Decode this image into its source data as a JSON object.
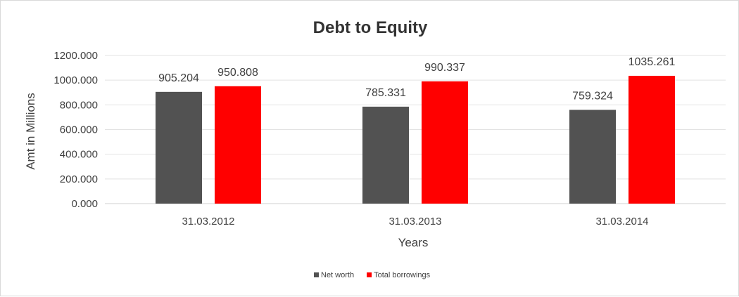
{
  "chart_data": {
    "type": "bar",
    "title": "Debt to Equity",
    "xlabel": "Years",
    "ylabel": "Amt in Millions",
    "categories": [
      "31.03.2012",
      "31.03.2013",
      "31.03.2014"
    ],
    "series": [
      {
        "name": "Net worth",
        "color": "#525252",
        "values": [
          905.204,
          785.331,
          759.324
        ]
      },
      {
        "name": "Total borrowings",
        "color": "#ff0000",
        "values": [
          950.808,
          990.337,
          1035.261
        ]
      }
    ],
    "ylim": [
      0,
      1200
    ],
    "yticks": [
      "0.000",
      "200.000",
      "400.000",
      "600.000",
      "800.000",
      "1000.000",
      "1200.000"
    ],
    "data_labels": [
      [
        "905.204",
        "785.331",
        "759.324"
      ],
      [
        "950.808",
        "990.337",
        "1035.261"
      ]
    ],
    "grid": true,
    "legend_position": "bottom"
  }
}
